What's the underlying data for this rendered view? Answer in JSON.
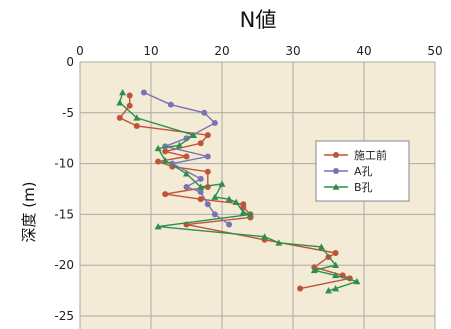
{
  "chart_data": {
    "type": "line",
    "title": "N値",
    "xlabel": "",
    "ylabel": "深度 (m)",
    "xlim": [
      0,
      50
    ],
    "ylim": [
      0,
      -25
    ],
    "xticks": [
      0,
      10,
      20,
      30,
      40,
      50
    ],
    "yticks": [
      0,
      -5,
      -10,
      -15,
      -20,
      -25
    ],
    "xtick_labels": [
      "0",
      "10",
      "20",
      "30",
      "40",
      "50"
    ],
    "ytick_labels": [
      "0",
      "-5",
      "-10",
      "-15",
      "-20",
      "-25"
    ],
    "grid": true,
    "x_axis_position": "top",
    "legend_position": "right",
    "series": [
      {
        "name": "施工前",
        "color": "#c0533a",
        "marker": "circle",
        "points": [
          [
            7,
            -3.3
          ],
          [
            7,
            -4.3
          ],
          [
            5.6,
            -5.5
          ],
          [
            8,
            -6.3
          ],
          [
            18,
            -7.2
          ],
          [
            17,
            -8.0
          ],
          [
            12,
            -8.8
          ],
          [
            15,
            -9.3
          ],
          [
            11,
            -9.8
          ],
          [
            13,
            -10.3
          ],
          [
            18,
            -10.8
          ],
          [
            18,
            -12.3
          ],
          [
            12,
            -13.0
          ],
          [
            17,
            -13.5
          ],
          [
            23,
            -14.0
          ],
          [
            23,
            -14.3
          ],
          [
            24,
            -15.0
          ],
          [
            24,
            -15.3
          ],
          [
            15,
            -16.0
          ],
          [
            26,
            -17.5
          ],
          [
            36,
            -18.8
          ],
          [
            35,
            -19.2
          ],
          [
            33,
            -20.2
          ],
          [
            37,
            -21.0
          ],
          [
            38,
            -21.3
          ],
          [
            31,
            -22.3
          ]
        ]
      },
      {
        "name": "A孔",
        "color": "#7a74b2",
        "marker": "circle",
        "points": [
          [
            9,
            -3.0
          ],
          [
            12.8,
            -4.2
          ],
          [
            17.5,
            -5.0
          ],
          [
            19,
            -6.0
          ],
          [
            15,
            -7.5
          ],
          [
            12,
            -8.3
          ],
          [
            18,
            -9.3
          ],
          [
            13,
            -10.0
          ],
          [
            17,
            -11.5
          ],
          [
            15,
            -12.3
          ],
          [
            17,
            -12.8
          ],
          [
            18,
            -14.0
          ],
          [
            19,
            -15.0
          ],
          [
            21,
            -16.0
          ]
        ]
      },
      {
        "name": "B孔",
        "color": "#2e8f4d",
        "marker": "triangle",
        "points": [
          [
            6,
            -3.0
          ],
          [
            5.6,
            -4.0
          ],
          [
            8,
            -5.5
          ],
          [
            16,
            -7.2
          ],
          [
            14,
            -8.2
          ],
          [
            11,
            -8.5
          ],
          [
            12,
            -9.7
          ],
          [
            15,
            -11.0
          ],
          [
            17,
            -12.3
          ],
          [
            20,
            -12.0
          ],
          [
            19,
            -13.3
          ],
          [
            21,
            -13.5
          ],
          [
            22,
            -13.8
          ],
          [
            23,
            -14.8
          ],
          [
            24,
            -15.0
          ],
          [
            11,
            -16.2
          ],
          [
            26,
            -17.2
          ],
          [
            28,
            -17.8
          ],
          [
            34,
            -18.2
          ],
          [
            36,
            -20.0
          ],
          [
            33,
            -20.5
          ],
          [
            36,
            -21.0
          ],
          [
            39,
            -21.6
          ],
          [
            36,
            -22.3
          ],
          [
            35,
            -22.5
          ]
        ]
      }
    ]
  }
}
